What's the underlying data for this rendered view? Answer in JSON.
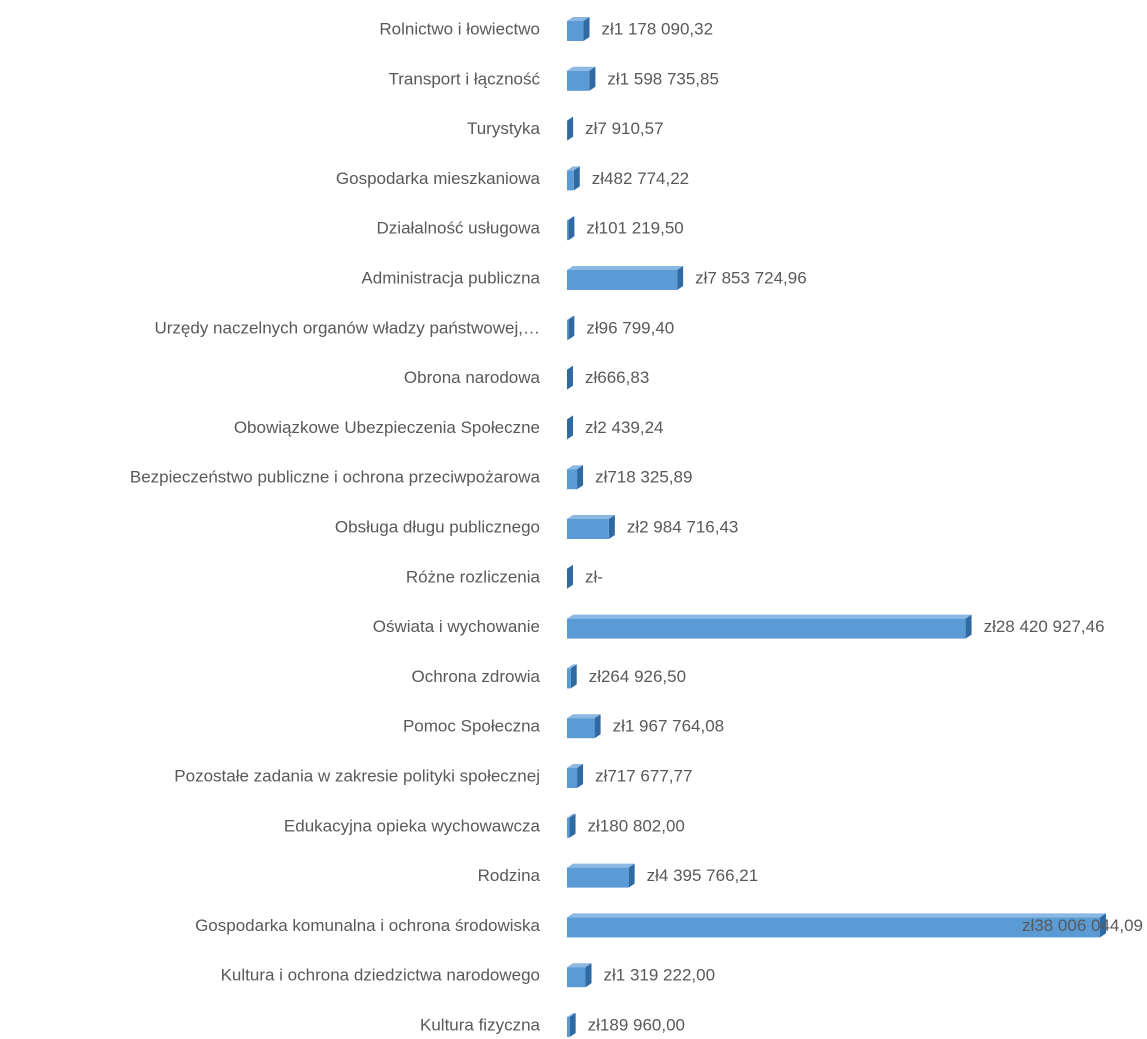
{
  "chart_data": {
    "type": "bar",
    "orientation": "horizontal",
    "categories": [
      "Rolnictwo i łowiectwo",
      "Transport i łączność",
      "Turystyka",
      "Gospodarka mieszkaniowa",
      "Działalność usługowa",
      "Administracja publiczna",
      "Urzędy naczelnych organów władzy państwowej,…",
      "Obrona narodowa",
      "Obowiązkowe Ubezpieczenia Społeczne",
      "Bezpieczeństwo publiczne i ochrona przeciwpożarowa",
      "Obsługa długu publicznego",
      "Różne rozliczenia",
      "Oświata i wychowanie",
      "Ochrona zdrowia",
      "Pomoc Społeczna",
      "Pozostałe zadania w zakresie polityki społecznej",
      "Edukacyjna opieka wychowawcza",
      "Rodzina",
      "Gospodarka komunalna i ochrona środowiska",
      "Kultura i ochrona dziedzictwa narodowego",
      "Kultura fizyczna"
    ],
    "values": [
      1178090.32,
      1598735.85,
      7910.57,
      482774.22,
      101219.5,
      7853724.96,
      96799.4,
      666.83,
      2439.24,
      718325.89,
      2984716.43,
      0,
      28420927.46,
      264926.5,
      1967764.08,
      717677.77,
      180802.0,
      4395766.21,
      38006044.09,
      1319222.0,
      189960.0
    ],
    "value_labels": [
      "zł1 178 090,32",
      "zł1 598 735,85",
      "zł7 910,57",
      "zł482 774,22",
      "zł101 219,50",
      "zł7 853 724,96",
      "zł96 799,40",
      "zł666,83",
      "zł2 439,24",
      "zł718 325,89",
      "zł2 984 716,43",
      "zł-",
      "zł28 420 927,46",
      "zł264 926,50",
      "zł1 967 764,08",
      "zł717 677,77",
      "zł180 802,00",
      "zł4 395 766,21",
      "zł38 006 044,09",
      "zł1 319 222,00",
      "zł189 960,00"
    ],
    "color": "#5b9bd5"
  }
}
